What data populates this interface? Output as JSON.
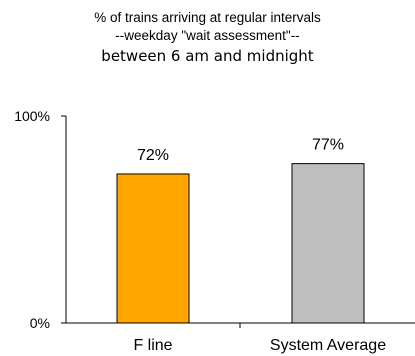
{
  "chart_data": {
    "type": "bar",
    "title_lines": [
      "% of trains arriving at regular intervals",
      "--weekday \"wait assessment\"--",
      "between 6 am and midnight"
    ],
    "categories": [
      "F line",
      "System Average"
    ],
    "values": [
      72,
      77
    ],
    "data_labels": [
      "72%",
      "77%"
    ],
    "yticks": [
      "0%",
      "100%"
    ],
    "ylim": [
      0,
      100
    ],
    "grid": false,
    "colors": {
      "bar_1": "#FFA500",
      "bar_2": "#BFBFBF",
      "outline": "#000000"
    }
  }
}
